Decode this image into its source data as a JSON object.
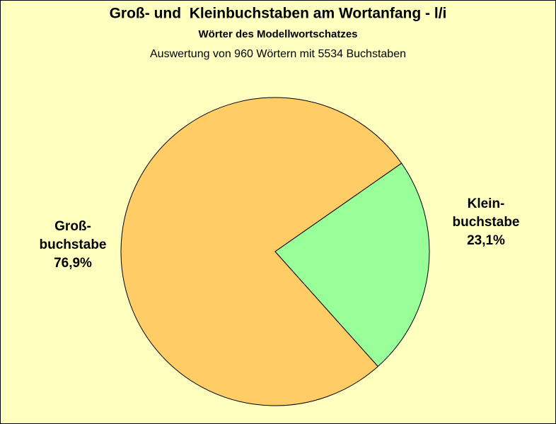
{
  "chart_data": {
    "type": "pie",
    "title": "Groß- und  Kleinbuchstaben am Wortanfang - l/i",
    "subtitle": "Wörter des Modellwortschatzes",
    "note": "Auswertung von 960 Wörtern mit 5534 Buchstaben",
    "categories": [
      "Groß-buchstabe",
      "Klein-buchstabe"
    ],
    "values": [
      76.9,
      23.1
    ],
    "value_labels": [
      "76,9%",
      "23,1%"
    ],
    "colors": [
      "#ffcc66",
      "#99ff99"
    ]
  }
}
